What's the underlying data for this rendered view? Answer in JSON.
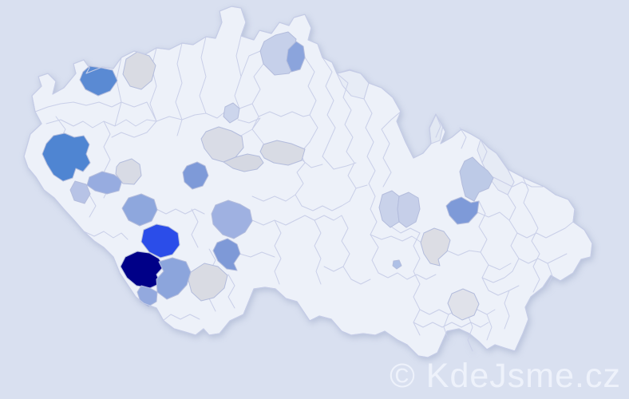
{
  "page": {
    "background": "#d9e0f0"
  },
  "map": {
    "land_fill": "#edf1f9",
    "outline_color": "#c5cce6",
    "border_color": "#c9cfe8",
    "region_stroke": "#b3bcdc",
    "tints": [
      {
        "id": "t1",
        "fill": "#e7ecf6"
      },
      {
        "id": "t2",
        "fill": "#e2e8f3"
      },
      {
        "id": "t3",
        "fill": "#e6ebf5"
      }
    ],
    "regions": [
      {
        "id": "r1",
        "fill": "#5a8ad3"
      },
      {
        "id": "r2",
        "fill": "#d9dbe3"
      },
      {
        "id": "r3",
        "fill": "#c6d0ea"
      },
      {
        "id": "r4",
        "fill": "#8ba4dc"
      },
      {
        "id": "r5",
        "fill": "#ccd5ec"
      },
      {
        "id": "r6",
        "fill": "#d9dce6"
      },
      {
        "id": "r7",
        "fill": "#d5d8e2"
      },
      {
        "id": "r8",
        "fill": "#d8dbe4"
      },
      {
        "id": "r9",
        "fill": "#4f85d2"
      },
      {
        "id": "r10",
        "fill": "#97ace0"
      },
      {
        "id": "r11",
        "fill": "#b7c3e6"
      },
      {
        "id": "r12",
        "fill": "#d8dbe5"
      },
      {
        "id": "r13",
        "fill": "#8ea7dd"
      },
      {
        "id": "r14",
        "fill": "#7e9ad8"
      },
      {
        "id": "r15",
        "fill": "#9fb1e1"
      },
      {
        "id": "r16",
        "fill": "#7e99d7"
      },
      {
        "id": "r17",
        "fill": "#2b4de9"
      },
      {
        "id": "r18",
        "fill": "#000088"
      },
      {
        "id": "r19",
        "fill": "#8ca5dc"
      },
      {
        "id": "r20",
        "fill": "#93a9de"
      },
      {
        "id": "r21",
        "fill": "#d9dbe3"
      },
      {
        "id": "r22",
        "fill": "#c9d2ea"
      },
      {
        "id": "r23",
        "fill": "#c6cfe9"
      },
      {
        "id": "r24",
        "fill": "#bdcae7"
      },
      {
        "id": "r25",
        "fill": "#7e9ad8"
      },
      {
        "id": "r26",
        "fill": "#dcdde4"
      },
      {
        "id": "r27",
        "fill": "#aec0e6"
      },
      {
        "id": "r28",
        "fill": "#e0e2ea"
      }
    ]
  },
  "watermark": {
    "text": "© KdeJsme.cz",
    "color": "#eef2fb"
  }
}
